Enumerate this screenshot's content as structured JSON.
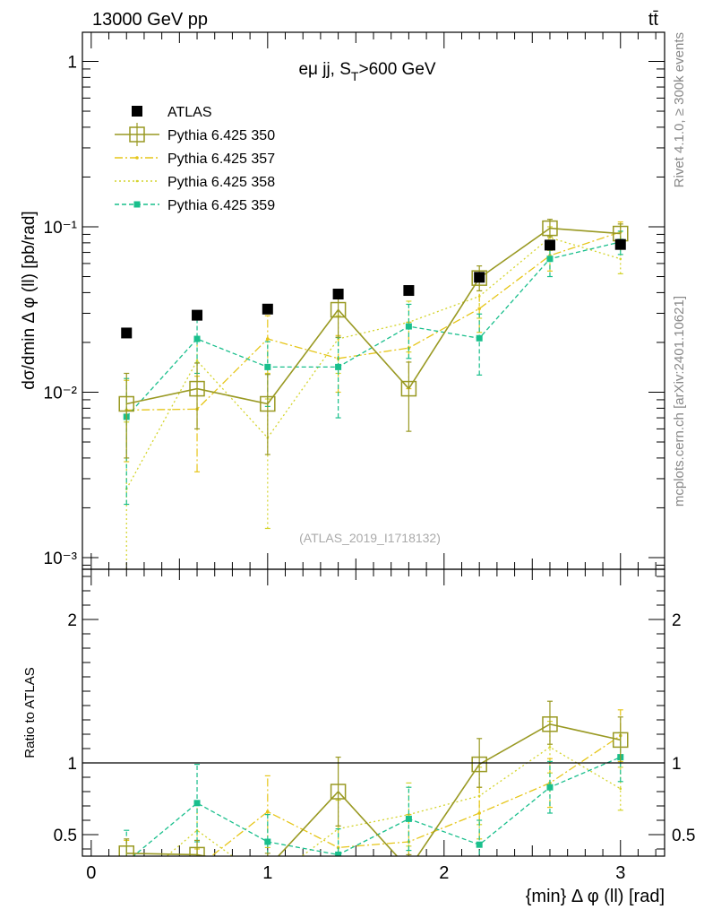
{
  "header": {
    "energy_label": "13000 GeV pp",
    "process_label": "tt̄",
    "rivet_label": "Rivet 4.1.0, ≥ 300k events",
    "mcplots_label": "mcplots.cern.ch [arXiv:2401.10621]"
  },
  "colors": {
    "atlas": "#000000",
    "p350": "#999922",
    "p357": "#e6c619",
    "p358": "#d4d42b",
    "p359": "#19bf8c"
  },
  "chart_data": [
    {
      "type": "line",
      "panel": "main",
      "title": "eμ jj, S_T>600 GeV",
      "title_main": "eμ jj, S",
      "title_sub": "T",
      "title_tail": ">600 GeV",
      "ylabel": "dσ/dmin Δ φ (ll) [pb/rad]",
      "yscale": "log",
      "ylim": [
        0.00085,
        1.5
      ],
      "y_ticks": [
        {
          "value": 1,
          "label": "1"
        },
        {
          "value": 0.1,
          "label": "10⁻¹"
        },
        {
          "value": 0.01,
          "label": "10⁻²"
        },
        {
          "value": 0.001,
          "label": "10⁻³"
        }
      ],
      "xlim": [
        -0.05,
        3.25
      ],
      "watermark": "(ATLAS_2019_I1718132)",
      "x": [
        0.2,
        0.6,
        1.0,
        1.4,
        1.8,
        2.2,
        2.6,
        3.0
      ],
      "series": [
        {
          "name": "ATLAS",
          "key": "atlas",
          "style": "data",
          "values": [
            0.0228,
            0.0292,
            0.0318,
            0.0392,
            0.0412,
            0.0495,
            0.0775,
            0.0782
          ],
          "err_low": [
            0,
            0,
            0,
            0,
            0,
            0,
            0,
            0
          ],
          "err_high": [
            0,
            0,
            0,
            0,
            0,
            0,
            0,
            0
          ]
        },
        {
          "name": "Pythia 6.425 350",
          "key": "p350",
          "style": "solid-square-open",
          "values": [
            0.0085,
            0.0105,
            0.0085,
            0.0315,
            0.0105,
            0.049,
            0.098,
            0.091
          ],
          "err_low": [
            0.0045,
            0.0045,
            0.0043,
            0.01,
            0.0047,
            0.008,
            0.011,
            0.012
          ],
          "err_high": [
            0.0045,
            0.0045,
            0.0043,
            0.01,
            0.0047,
            0.009,
            0.013,
            0.013
          ]
        },
        {
          "name": "Pythia 6.425 357",
          "key": "p357",
          "style": "dashdot",
          "values": [
            0.0078,
            0.0079,
            0.021,
            0.016,
            0.0185,
            0.032,
            0.067,
            0.093
          ],
          "err_low": [
            0.004,
            0.0046,
            0.008,
            0.006,
            0.008,
            0.009,
            0.013,
            0.014
          ],
          "err_high": [
            0.004,
            0.0046,
            0.008,
            0.006,
            0.008,
            0.009,
            0.013,
            0.014
          ]
        },
        {
          "name": "Pythia 6.425 358",
          "key": "p358",
          "style": "dotted",
          "values": [
            0.0026,
            0.0155,
            0.0053,
            0.021,
            0.0265,
            0.038,
            0.086,
            0.064
          ],
          "err_low": [
            0.002,
            0.006,
            0.0038,
            0.008,
            0.009,
            0.01,
            0.014,
            0.012
          ],
          "err_high": [
            0.004,
            0.006,
            0.0038,
            0.008,
            0.009,
            0.01,
            0.014,
            0.012
          ]
        },
        {
          "name": "Pythia 6.425 359",
          "key": "p359",
          "style": "dashed-square-filled",
          "values": [
            0.0071,
            0.021,
            0.0142,
            0.0142,
            0.025,
            0.0212,
            0.064,
            0.081
          ],
          "err_low": [
            0.005,
            0.008,
            0.006,
            0.0072,
            0.009,
            0.0085,
            0.014,
            0.013
          ],
          "err_high": [
            0.005,
            0.008,
            0.006,
            0.0072,
            0.009,
            0.0085,
            0.014,
            0.013
          ]
        }
      ]
    },
    {
      "type": "line",
      "panel": "ratio",
      "ylabel": "Ratio to ATLAS",
      "ylim": [
        0.35,
        2.35
      ],
      "y_ticks": [
        {
          "value": 0.5,
          "label": "0.5"
        },
        {
          "value": 1,
          "label": "1"
        },
        {
          "value": 2,
          "label": "2"
        }
      ],
      "xlabel": "{min} Δ φ (ll) [rad]",
      "x_ticks": [
        {
          "value": 0,
          "label": "0"
        },
        {
          "value": 1,
          "label": "1"
        },
        {
          "value": 2,
          "label": "2"
        },
        {
          "value": 3,
          "label": "3"
        }
      ],
      "xlim": [
        -0.05,
        3.25
      ],
      "x": [
        0.2,
        0.6,
        1.0,
        1.4,
        1.8,
        2.2,
        2.6,
        3.0
      ],
      "series": [
        {
          "name": "Pythia 6.425 350",
          "key": "p350",
          "values": [
            0.37,
            0.36,
            0.27,
            0.8,
            0.26,
            0.99,
            1.27,
            1.16
          ],
          "err_low": [
            0.1,
            0.1,
            0.1,
            0.24,
            0.1,
            0.16,
            0.14,
            0.16
          ],
          "err_high": [
            0.1,
            0.1,
            0.1,
            0.24,
            0.1,
            0.18,
            0.16,
            0.16
          ]
        },
        {
          "name": "Pythia 6.425 357",
          "key": "p357",
          "values": [
            0.34,
            0.27,
            0.66,
            0.41,
            0.45,
            0.65,
            0.86,
            1.19
          ],
          "err_low": [
            0.12,
            0.13,
            0.25,
            0.15,
            0.19,
            0.18,
            0.17,
            0.18
          ],
          "err_high": [
            0.12,
            0.13,
            0.25,
            0.15,
            0.19,
            0.18,
            0.17,
            0.18
          ]
        },
        {
          "name": "Pythia 6.425 358",
          "key": "p358",
          "values": [
            0.11,
            0.53,
            0.17,
            0.54,
            0.64,
            0.77,
            1.11,
            0.82
          ],
          "err_low": [
            0.09,
            0.2,
            0.12,
            0.2,
            0.22,
            0.2,
            0.18,
            0.15
          ],
          "err_high": [
            0.17,
            0.2,
            0.12,
            0.2,
            0.22,
            0.2,
            0.18,
            0.15
          ]
        },
        {
          "name": "Pythia 6.425 359",
          "key": "p359",
          "values": [
            0.31,
            0.72,
            0.45,
            0.36,
            0.61,
            0.43,
            0.83,
            1.04
          ],
          "err_low": [
            0.22,
            0.27,
            0.19,
            0.18,
            0.22,
            0.17,
            0.18,
            0.17
          ],
          "err_high": [
            0.22,
            0.27,
            0.19,
            0.18,
            0.22,
            0.17,
            0.18,
            0.17
          ]
        }
      ]
    }
  ]
}
